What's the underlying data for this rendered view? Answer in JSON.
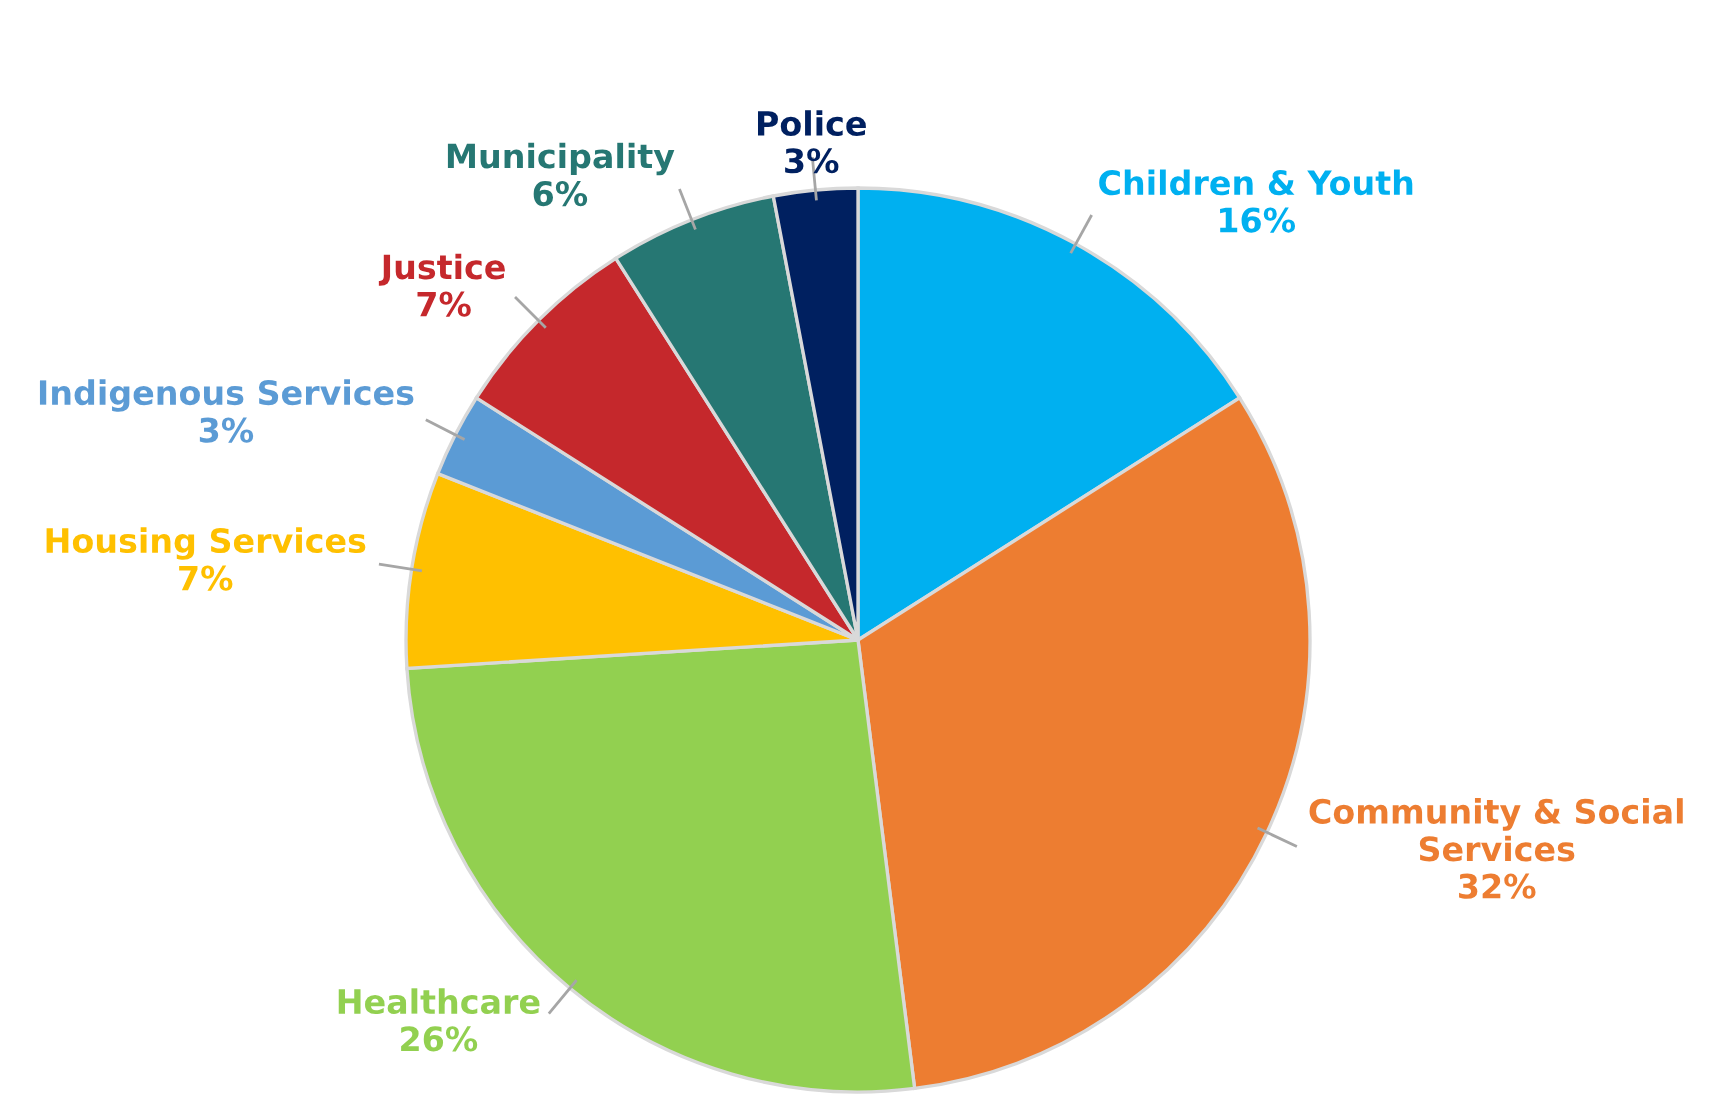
{
  "chart_data": {
    "type": "pie",
    "categories": [
      "Children & Youth",
      "Community & Social Services",
      "Healthcare",
      "Housing Services",
      "Indigenous Services",
      "Justice",
      "Municipality",
      "Police"
    ],
    "values": [
      16,
      32,
      26,
      7,
      3,
      7,
      6,
      3
    ],
    "value_labels": [
      "16%",
      "32%",
      "26%",
      "7%",
      "3%",
      "7%",
      "6%",
      "3%"
    ],
    "colors": [
      "#00b0f0",
      "#ed7d31",
      "#92d050",
      "#ffc000",
      "#5b9bd5",
      "#c5282c",
      "#267773",
      "#002060"
    ],
    "legend": false
  }
}
